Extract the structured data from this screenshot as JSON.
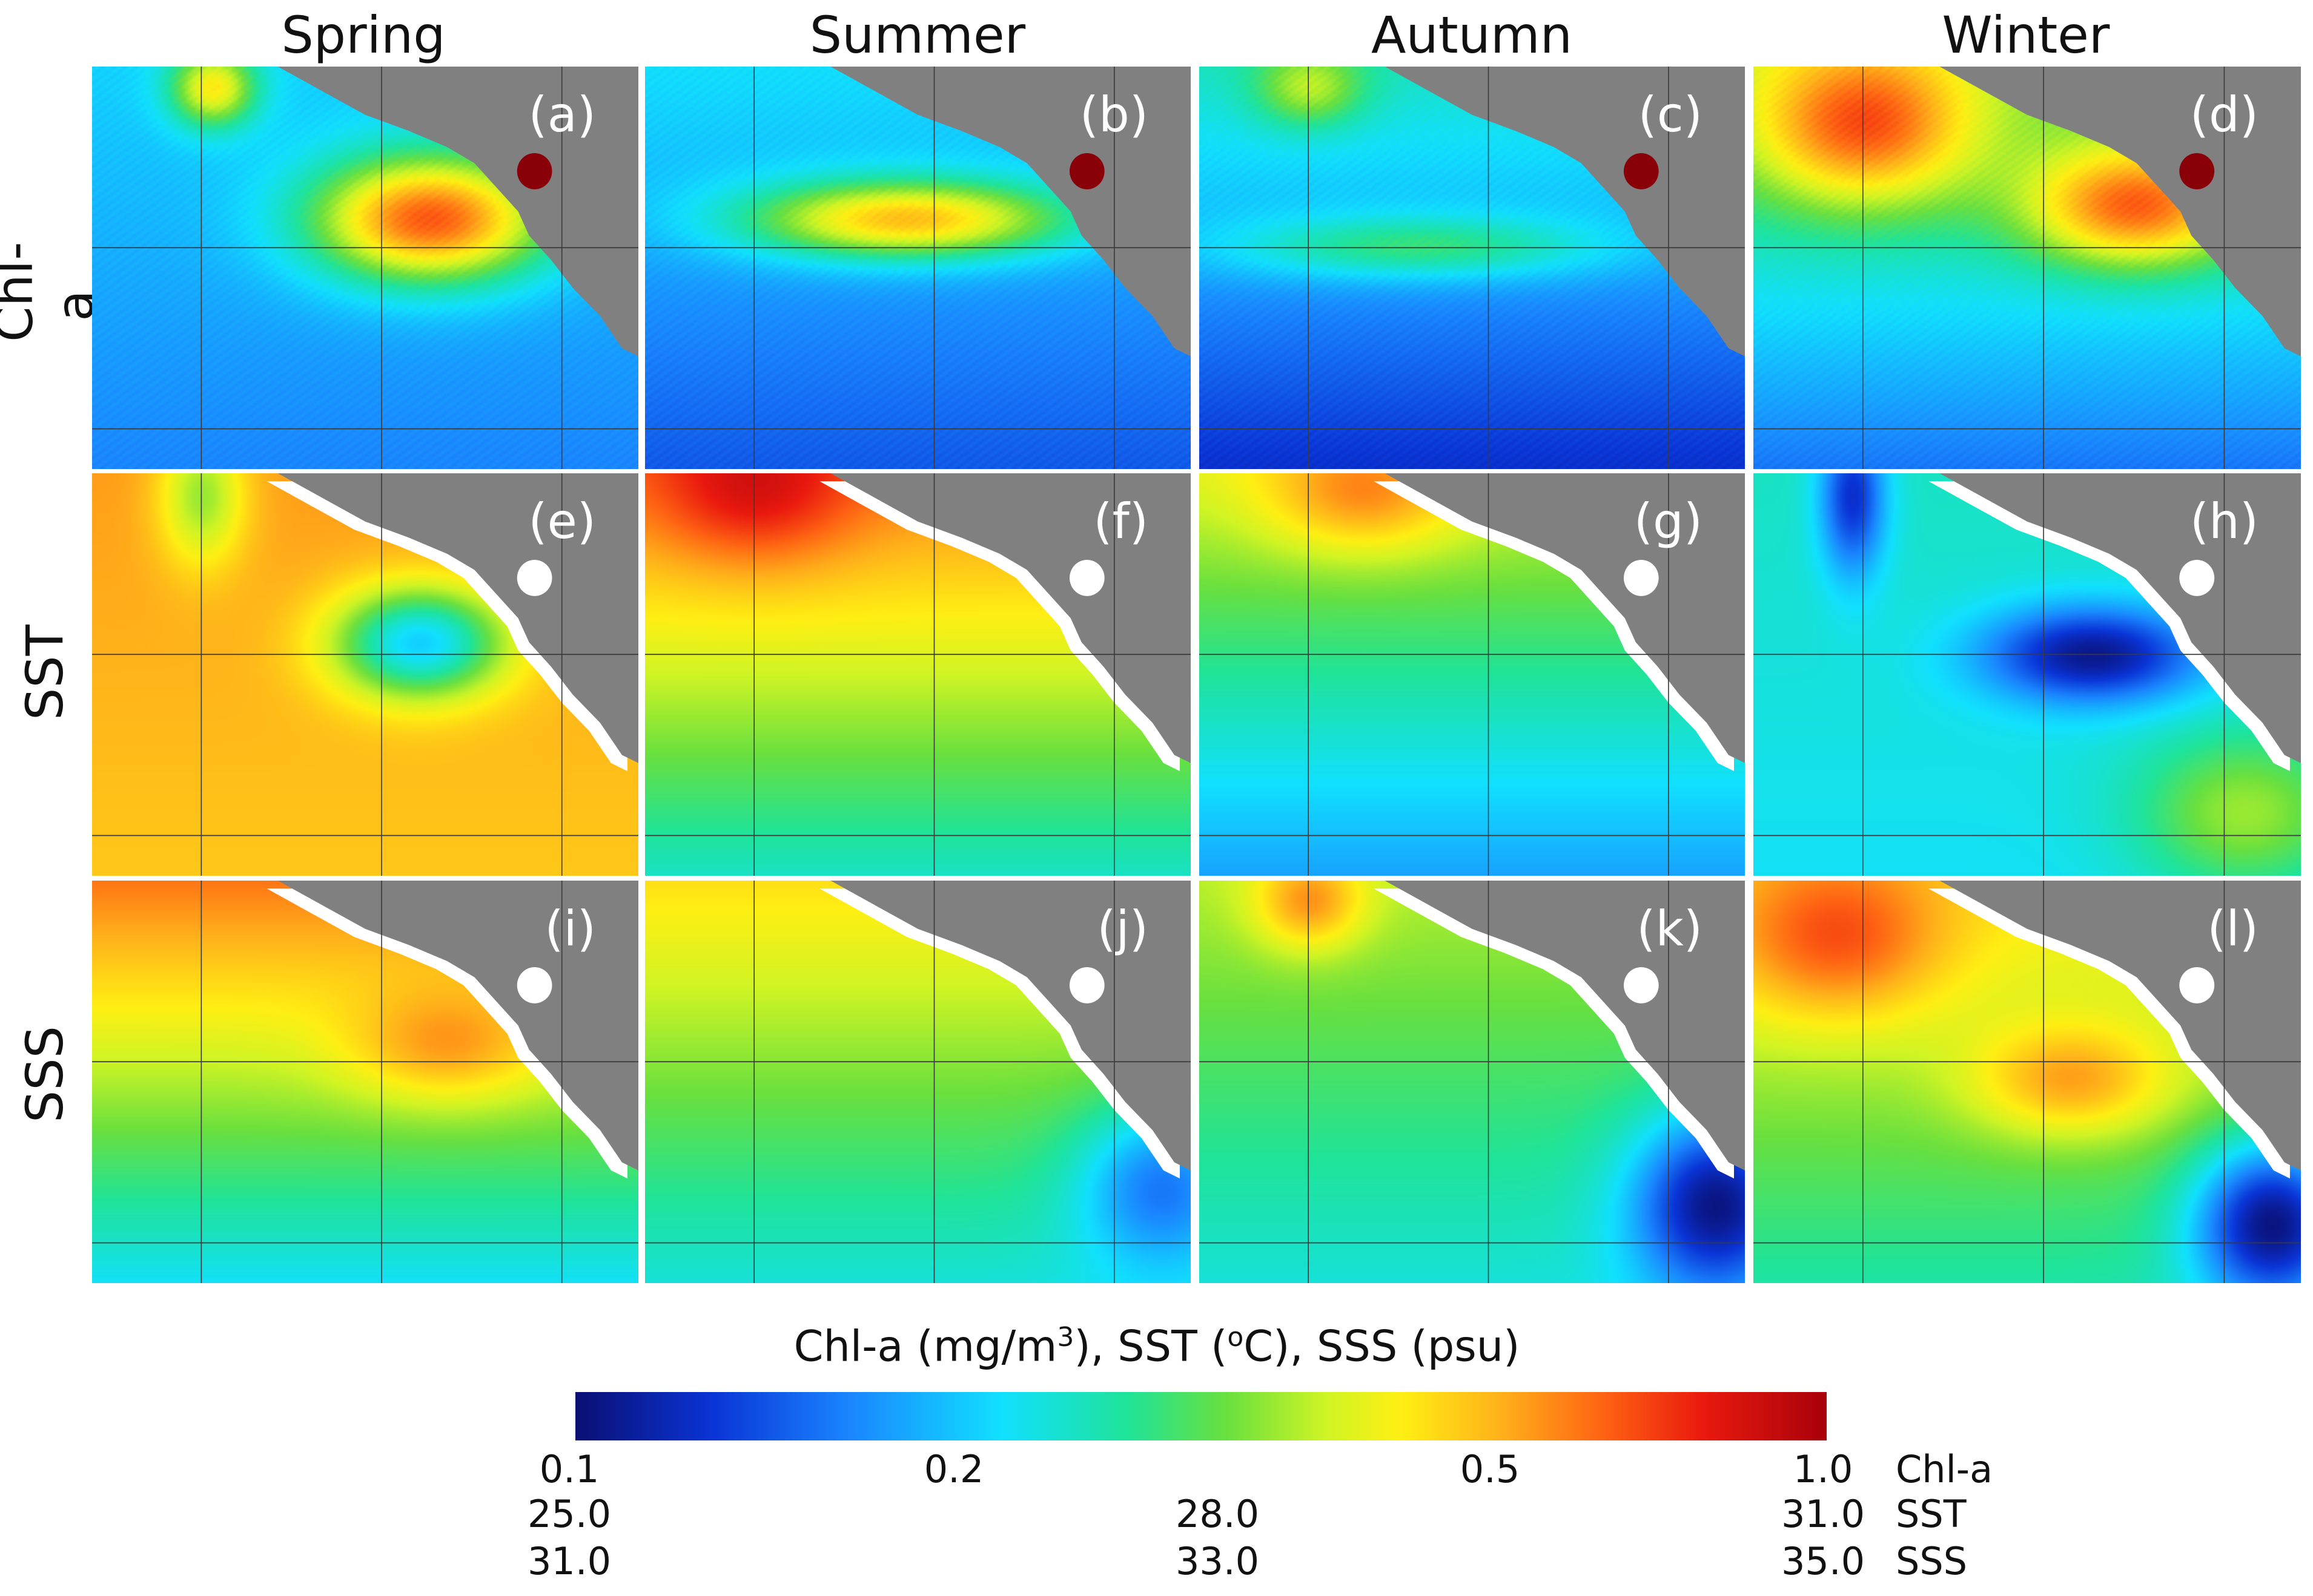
{
  "seasons": [
    "Spring",
    "Summer",
    "Autumn",
    "Winter"
  ],
  "rows": [
    "Chl-a",
    "SST",
    "SSS"
  ],
  "panel_labels": [
    "(a)",
    "(b)",
    "(c)",
    "(d)",
    "(e)",
    "(f)",
    "(g)",
    "(h)",
    "(i)",
    "(j)",
    "(k)",
    "(l)"
  ],
  "colorbar": {
    "title_prefix": "Chl-a (mg/m",
    "title_sup": "3",
    "title_suffix": "), SST (",
    "title_sup2": "o",
    "title_end": "C), SSS (psu)",
    "chl_ticks": [
      "0.1",
      "0.2",
      "0.5",
      "1.0"
    ],
    "sst_ticks": [
      "25.0",
      "28.0",
      "31.0"
    ],
    "sss_ticks": [
      "31.0",
      "33.0",
      "35.0"
    ],
    "var_names": [
      "Chl-a",
      "SST",
      "SSS"
    ]
  },
  "colors": {
    "land": "#808080",
    "gridline": "#3a3a3a"
  }
}
